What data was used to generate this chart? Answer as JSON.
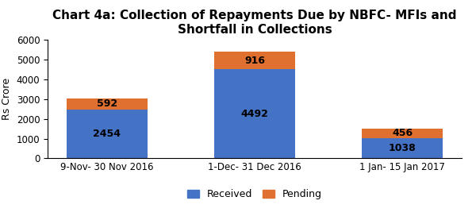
{
  "title": "Chart 4a: Collection of Repayments Due by NBFC- MFIs and\nShortfall in Collections",
  "categories": [
    "9-Nov- 30 Nov 2016",
    "1-Dec- 31 Dec 2016",
    "1 Jan- 15 Jan 2017"
  ],
  "received": [
    2454,
    4492,
    1038
  ],
  "pending": [
    592,
    916,
    456
  ],
  "received_color": "#4472c4",
  "pending_color": "#e07030",
  "ylabel": "Rs Crore",
  "ylim": [
    0,
    6000
  ],
  "yticks": [
    0,
    1000,
    2000,
    3000,
    4000,
    5000,
    6000
  ],
  "legend_labels": [
    "Received",
    "Pending"
  ],
  "bar_width": 0.55,
  "title_fontsize": 11,
  "label_fontsize": 9,
  "tick_fontsize": 8.5,
  "legend_fontsize": 9,
  "background_color": "#ffffff"
}
